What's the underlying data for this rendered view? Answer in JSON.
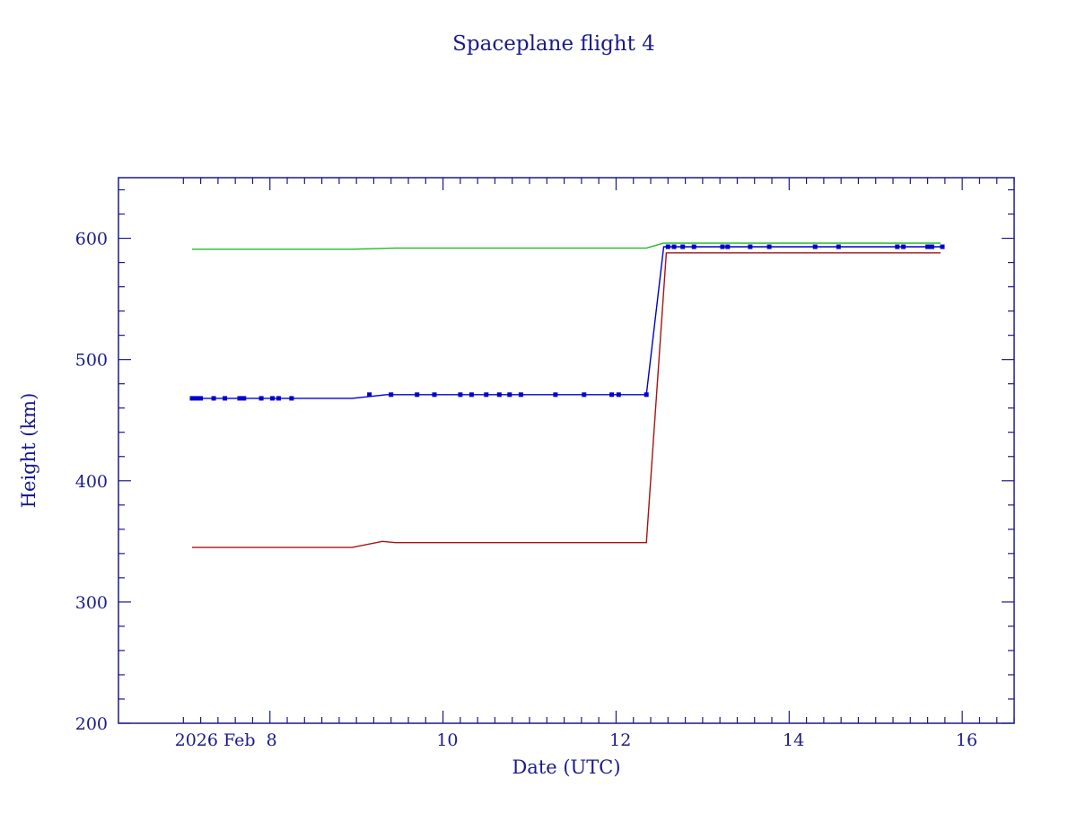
{
  "chart_data": {
    "type": "line",
    "title": "Spaceplane flight 4",
    "xlabel": "Date (UTC)",
    "ylabel": "Height (km)",
    "xlim": [
      6.2,
      16.55
    ],
    "ylim": [
      200,
      650
    ],
    "x_ticks": [
      {
        "value": 7.95,
        "label": "2026 Feb  8"
      },
      {
        "value": 10,
        "label": "10"
      },
      {
        "value": 12,
        "label": "12"
      },
      {
        "value": 14,
        "label": "14"
      },
      {
        "value": 16,
        "label": "16"
      }
    ],
    "y_ticks": [
      {
        "value": 200,
        "label": "200"
      },
      {
        "value": 300,
        "label": "300"
      },
      {
        "value": 400,
        "label": "400"
      },
      {
        "value": 500,
        "label": "500"
      },
      {
        "value": 600,
        "label": "600"
      }
    ],
    "grid": false,
    "colors": {
      "axes": "#1a1a8c",
      "text": "#1a1a8c",
      "apogee": "#22bb22",
      "mean": "#0000cc",
      "perigee": "#aa1111"
    },
    "series": [
      {
        "color": "#22bb22",
        "x": [
          7.05,
          8.9,
          9.4,
          12.3,
          12.5,
          15.7
        ],
        "y": [
          591,
          591,
          592,
          592,
          596,
          596
        ]
      },
      {
        "color": "#0000cc",
        "x": [
          7.05,
          8.9,
          9.3,
          12.3,
          12.5,
          15.7
        ],
        "y": [
          468,
          468,
          471,
          471,
          593,
          593
        ],
        "markers": true
      },
      {
        "color": "#aa1111",
        "x": [
          7.05,
          8.9,
          9.25,
          9.4,
          12.3,
          12.53,
          15.7
        ],
        "y": [
          345,
          345,
          350,
          349,
          349,
          588,
          588
        ]
      }
    ],
    "points": {
      "x": [
        7.05,
        7.1,
        7.15,
        7.3,
        7.43,
        7.6,
        7.65,
        7.85,
        7.98,
        8.05,
        8.2,
        9.1,
        9.35,
        9.65,
        9.85,
        10.15,
        10.28,
        10.45,
        10.6,
        10.72,
        10.85,
        11.25,
        11.58,
        11.9,
        11.98,
        12.3,
        12.55,
        12.62,
        12.72,
        12.85,
        13.18,
        13.24,
        13.5,
        13.72,
        14.25,
        14.52,
        15.2,
        15.27,
        15.55,
        15.6,
        15.72
      ],
      "y": [
        468,
        468,
        468,
        468,
        468,
        468,
        468,
        468,
        468,
        468,
        468,
        471,
        471,
        471,
        471,
        471,
        471,
        471,
        471,
        471,
        471,
        471,
        471,
        471,
        471,
        471,
        593,
        593,
        593,
        593,
        593,
        593,
        593,
        593,
        593,
        593,
        593,
        593,
        593,
        593,
        593
      ]
    }
  }
}
